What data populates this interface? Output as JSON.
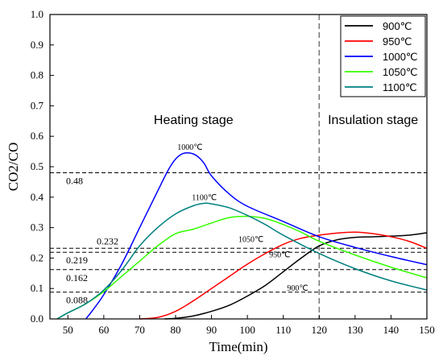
{
  "chart_data": {
    "type": "line",
    "title": "",
    "xlabel": "Time(min)",
    "ylabel": "CO2/CO",
    "xlim": [
      45,
      150
    ],
    "ylim": [
      0,
      1.0
    ],
    "x_ticks": [
      "50",
      "60",
      "70",
      "80",
      "90",
      "100",
      "110",
      "120",
      "130",
      "140",
      "150"
    ],
    "y_ticks": [
      "0.0",
      "0.1",
      "0.2",
      "0.3",
      "0.4",
      "0.5",
      "0.6",
      "0.7",
      "0.8",
      "0.9",
      "1.0"
    ],
    "legend_position": "top-right",
    "series": [
      {
        "name": "900℃",
        "color": "#000000",
        "x": [
          77,
          80,
          85,
          90,
          95,
          100,
          105,
          110,
          115,
          120,
          125,
          130,
          135,
          140,
          145,
          150
        ],
        "y": [
          0.0,
          0.002,
          0.01,
          0.025,
          0.045,
          0.075,
          0.11,
          0.155,
          0.2,
          0.24,
          0.26,
          0.268,
          0.27,
          0.272,
          0.275,
          0.283
        ]
      },
      {
        "name": "950℃",
        "color": "#ff0000",
        "x": [
          70,
          75,
          80,
          85,
          90,
          95,
          100,
          105,
          110,
          115,
          120,
          125,
          130,
          135,
          140,
          145,
          150
        ],
        "y": [
          0.0,
          0.005,
          0.025,
          0.06,
          0.1,
          0.14,
          0.18,
          0.215,
          0.245,
          0.265,
          0.275,
          0.282,
          0.285,
          0.28,
          0.27,
          0.255,
          0.232
        ]
      },
      {
        "name": "1000℃",
        "color": "#0000ff",
        "x": [
          55,
          57,
          60,
          65,
          70,
          75,
          78,
          80,
          82,
          84,
          86,
          88,
          90,
          95,
          100,
          110,
          120,
          130,
          140,
          150
        ],
        "y": [
          0.0,
          0.03,
          0.08,
          0.18,
          0.3,
          0.42,
          0.49,
          0.525,
          0.543,
          0.545,
          0.535,
          0.51,
          0.47,
          0.41,
          0.37,
          0.32,
          0.27,
          0.235,
          0.205,
          0.178
        ]
      },
      {
        "name": "1050℃",
        "color": "#33ff00",
        "x": [
          47,
          50,
          55,
          60,
          65,
          70,
          75,
          80,
          85,
          90,
          95,
          100,
          105,
          110,
          115,
          120,
          130,
          140,
          150
        ],
        "y": [
          0.0,
          0.02,
          0.05,
          0.09,
          0.14,
          0.19,
          0.24,
          0.28,
          0.295,
          0.315,
          0.333,
          0.337,
          0.33,
          0.31,
          0.285,
          0.255,
          0.21,
          0.17,
          0.135
        ]
      },
      {
        "name": "1100℃",
        "color": "#008080",
        "x": [
          47,
          50,
          55,
          60,
          65,
          70,
          75,
          80,
          85,
          88,
          90,
          95,
          100,
          105,
          110,
          120,
          130,
          140,
          150
        ],
        "y": [
          0.0,
          0.02,
          0.05,
          0.095,
          0.16,
          0.24,
          0.3,
          0.345,
          0.372,
          0.38,
          0.378,
          0.365,
          0.34,
          0.31,
          0.275,
          0.215,
          0.165,
          0.125,
          0.095
        ]
      }
    ],
    "hlines": [
      {
        "y": 0.48,
        "label": "0.48"
      },
      {
        "y": 0.232,
        "label": "0.232"
      },
      {
        "y": 0.219,
        "label": "0.219"
      },
      {
        "y": 0.162,
        "label": "0.162"
      },
      {
        "y": 0.088,
        "label": "0.088"
      }
    ],
    "vline": {
      "x": 120
    },
    "annotations": [
      {
        "text": "Heating stage",
        "x": 85,
        "y": 0.64,
        "cls": "stage"
      },
      {
        "text": "Insulation stage",
        "x": 135,
        "y": 0.64,
        "cls": "stage"
      },
      {
        "text": "1000℃",
        "x": 84,
        "y": 0.555,
        "cls": "small-anno"
      },
      {
        "text": "1100℃",
        "x": 88,
        "y": 0.39,
        "cls": "small-anno"
      },
      {
        "text": "1050℃",
        "x": 101,
        "y": 0.253,
        "cls": "small-anno"
      },
      {
        "text": "950℃",
        "x": 109,
        "y": 0.203,
        "cls": "small-anno"
      },
      {
        "text": "900℃",
        "x": 114,
        "y": 0.092,
        "cls": "small-anno"
      }
    ]
  }
}
